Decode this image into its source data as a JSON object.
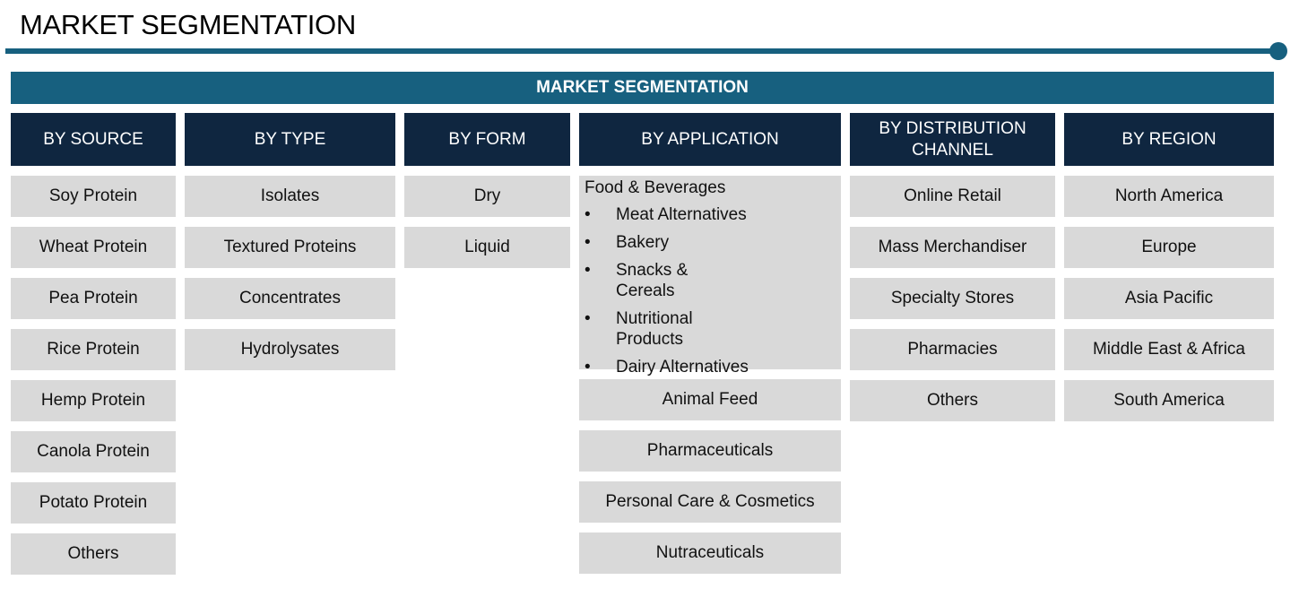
{
  "title": "MARKET SEGMENTATION",
  "banner": "MARKET SEGMENTATION",
  "colors": {
    "accent": "#17607f",
    "header": "#0f2640",
    "cell": "#d9d9d9"
  },
  "columns": [
    {
      "header": "BY SOURCE",
      "items": [
        "Soy Protein",
        "Wheat Protein",
        "Pea Protein",
        "Rice Protein",
        "Hemp Protein",
        "Canola Protein",
        "Potato Protein",
        "Others"
      ]
    },
    {
      "header": "BY TYPE",
      "items": [
        "Isolates",
        "Textured Proteins",
        "Concentrates",
        "Hydrolysates"
      ]
    },
    {
      "header": "BY FORM",
      "items": [
        "Dry",
        "Liquid"
      ]
    },
    {
      "header": "BY APPLICATION",
      "group": {
        "label": "Food & Beverages",
        "subitems": [
          "Meat Alternatives",
          "Bakery",
          "Snacks & Cereals",
          "Nutritional Products",
          "Dairy Alternatives"
        ]
      },
      "items": [
        "Animal Feed",
        "Pharmaceuticals",
        "Personal Care & Cosmetics",
        "Nutraceuticals"
      ]
    },
    {
      "header": "BY DISTRIBUTION CHANNEL",
      "items": [
        "Online Retail",
        "Mass Merchandiser",
        "Specialty Stores",
        "Pharmacies",
        "Others"
      ]
    },
    {
      "header": "BY REGION",
      "items": [
        "North America",
        "Europe",
        "Asia Pacific",
        "Middle East & Africa",
        "South America"
      ]
    }
  ]
}
